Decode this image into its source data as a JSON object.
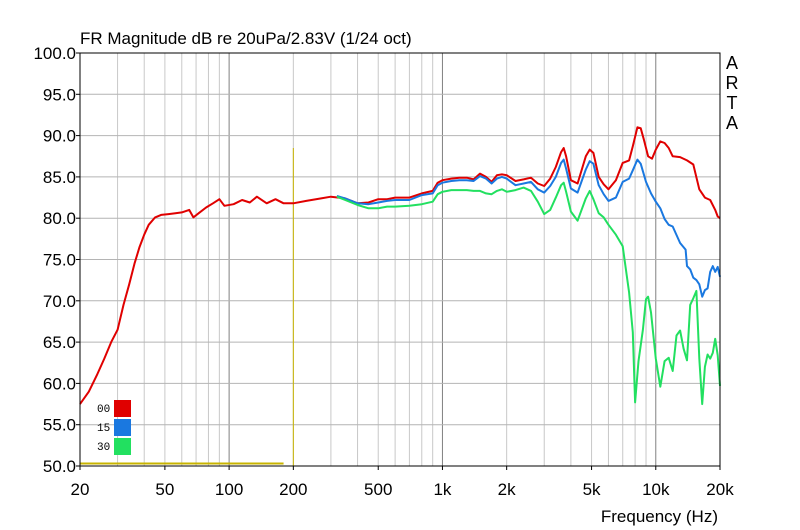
{
  "chart_data": {
    "type": "line",
    "title": "FR Magnitude dB re 20uPa/2.83V (1/24 oct)",
    "xlabel": "Frequency (Hz)",
    "ylabel": "",
    "xscale": "log",
    "xlim": [
      20,
      20000
    ],
    "ylim": [
      50,
      100
    ],
    "grid": true,
    "legend_position": "bottom-left",
    "brand_label": "ARTA",
    "x_tick_labels": [
      {
        "value": 20,
        "label": "20"
      },
      {
        "value": 50,
        "label": "50"
      },
      {
        "value": 100,
        "label": "100"
      },
      {
        "value": 200,
        "label": "200"
      },
      {
        "value": 500,
        "label": "500"
      },
      {
        "value": 1000,
        "label": "1k"
      },
      {
        "value": 2000,
        "label": "2k"
      },
      {
        "value": 5000,
        "label": "5k"
      },
      {
        "value": 10000,
        "label": "10k"
      },
      {
        "value": 20000,
        "label": "20k"
      }
    ],
    "y_tick_labels": [
      "100.0",
      "95.0",
      "90.0",
      "85.0",
      "80.0",
      "75.0",
      "70.0",
      "65.0",
      "60.0",
      "55.0",
      "50.0"
    ],
    "markers": [
      {
        "type": "vline",
        "x": 200,
        "y_top": 88.5,
        "color": "#c8b400"
      },
      {
        "type": "hline",
        "y": 50.3,
        "x_start": 20,
        "x_end": 180,
        "color": "#c8b400"
      }
    ],
    "series": [
      {
        "name": "00",
        "color": "#e00000",
        "points": [
          [
            20,
            57.5
          ],
          [
            22,
            59
          ],
          [
            24,
            61
          ],
          [
            26,
            63
          ],
          [
            28,
            65
          ],
          [
            30,
            66.5
          ],
          [
            32,
            69.5
          ],
          [
            34,
            72
          ],
          [
            36,
            74.5
          ],
          [
            38,
            76.5
          ],
          [
            40,
            78
          ],
          [
            42,
            79.2
          ],
          [
            45,
            80.1
          ],
          [
            48,
            80.4
          ],
          [
            52,
            80.5
          ],
          [
            56,
            80.6
          ],
          [
            60,
            80.7
          ],
          [
            65,
            81.0
          ],
          [
            68,
            80.1
          ],
          [
            72,
            80.6
          ],
          [
            78,
            81.3
          ],
          [
            84,
            81.8
          ],
          [
            90,
            82.3
          ],
          [
            95,
            81.5
          ],
          [
            105,
            81.7
          ],
          [
            115,
            82.2
          ],
          [
            125,
            81.9
          ],
          [
            135,
            82.6
          ],
          [
            150,
            81.8
          ],
          [
            165,
            82.3
          ],
          [
            180,
            81.8
          ],
          [
            200,
            81.8
          ],
          [
            230,
            82.1
          ],
          [
            270,
            82.4
          ],
          [
            300,
            82.6
          ],
          [
            350,
            82.4
          ],
          [
            400,
            81.8
          ],
          [
            450,
            81.9
          ],
          [
            500,
            82.3
          ],
          [
            550,
            82.3
          ],
          [
            600,
            82.5
          ],
          [
            700,
            82.5
          ],
          [
            800,
            83.0
          ],
          [
            900,
            83.3
          ],
          [
            950,
            84.3
          ],
          [
            1000,
            84.6
          ],
          [
            1100,
            84.8
          ],
          [
            1200,
            84.9
          ],
          [
            1300,
            84.9
          ],
          [
            1400,
            84.7
          ],
          [
            1500,
            85.4
          ],
          [
            1600,
            85.0
          ],
          [
            1700,
            84.4
          ],
          [
            1800,
            85.2
          ],
          [
            1900,
            85.3
          ],
          [
            2000,
            85.2
          ],
          [
            2200,
            84.5
          ],
          [
            2400,
            84.7
          ],
          [
            2600,
            84.9
          ],
          [
            2800,
            84.2
          ],
          [
            3000,
            83.9
          ],
          [
            3200,
            84.8
          ],
          [
            3400,
            86.2
          ],
          [
            3600,
            88.0
          ],
          [
            3700,
            88.5
          ],
          [
            3800,
            87.5
          ],
          [
            4000,
            84.6
          ],
          [
            4300,
            84.2
          ],
          [
            4700,
            87.5
          ],
          [
            4900,
            88.3
          ],
          [
            5100,
            87.9
          ],
          [
            5400,
            85.0
          ],
          [
            5700,
            84.1
          ],
          [
            6000,
            83.5
          ],
          [
            6500,
            84.6
          ],
          [
            7000,
            86.7
          ],
          [
            7500,
            87.0
          ],
          [
            7800,
            88.7
          ],
          [
            8200,
            91.0
          ],
          [
            8500,
            90.9
          ],
          [
            8800,
            89.5
          ],
          [
            9200,
            87.5
          ],
          [
            9600,
            87.2
          ],
          [
            10000,
            88.3
          ],
          [
            10500,
            89.3
          ],
          [
            11000,
            89.1
          ],
          [
            11500,
            88.5
          ],
          [
            12000,
            87.5
          ],
          [
            13000,
            87.4
          ],
          [
            14000,
            87.0
          ],
          [
            15000,
            86.5
          ],
          [
            16000,
            83.5
          ],
          [
            17000,
            82.5
          ],
          [
            18000,
            82.2
          ],
          [
            19000,
            81.0
          ],
          [
            19500,
            80.2
          ],
          [
            20000,
            80.0
          ]
        ]
      },
      {
        "name": "15",
        "color": "#1a78e0",
        "points": [
          [
            320,
            82.7
          ],
          [
            350,
            82.4
          ],
          [
            400,
            81.8
          ],
          [
            450,
            81.7
          ],
          [
            500,
            81.9
          ],
          [
            550,
            82.1
          ],
          [
            600,
            82.2
          ],
          [
            700,
            82.2
          ],
          [
            800,
            82.8
          ],
          [
            900,
            83.0
          ],
          [
            950,
            84.0
          ],
          [
            1000,
            84.3
          ],
          [
            1100,
            84.5
          ],
          [
            1200,
            84.6
          ],
          [
            1300,
            84.6
          ],
          [
            1400,
            84.5
          ],
          [
            1500,
            85.1
          ],
          [
            1600,
            84.8
          ],
          [
            1700,
            84.2
          ],
          [
            1800,
            84.8
          ],
          [
            1900,
            85.0
          ],
          [
            2000,
            84.8
          ],
          [
            2200,
            84.0
          ],
          [
            2400,
            84.2
          ],
          [
            2600,
            84.4
          ],
          [
            2800,
            83.5
          ],
          [
            3000,
            83.1
          ],
          [
            3200,
            83.9
          ],
          [
            3400,
            85.0
          ],
          [
            3600,
            86.7
          ],
          [
            3700,
            87.1
          ],
          [
            3800,
            86.0
          ],
          [
            4000,
            83.6
          ],
          [
            4300,
            83.1
          ],
          [
            4700,
            85.9
          ],
          [
            4900,
            86.9
          ],
          [
            5100,
            86.6
          ],
          [
            5400,
            84.0
          ],
          [
            5700,
            82.9
          ],
          [
            6000,
            82.1
          ],
          [
            6500,
            82.5
          ],
          [
            7000,
            84.4
          ],
          [
            7500,
            84.8
          ],
          [
            7800,
            85.8
          ],
          [
            8200,
            87.1
          ],
          [
            8500,
            86.6
          ],
          [
            9000,
            84.4
          ],
          [
            9500,
            83.0
          ],
          [
            10000,
            82.0
          ],
          [
            10500,
            81.2
          ],
          [
            11000,
            79.9
          ],
          [
            11500,
            79.2
          ],
          [
            12000,
            79.0
          ],
          [
            13000,
            77.0
          ],
          [
            13800,
            76.2
          ],
          [
            14000,
            74.2
          ],
          [
            14500,
            73.8
          ],
          [
            15000,
            72.8
          ],
          [
            15500,
            72.5
          ],
          [
            16000,
            72.0
          ],
          [
            16500,
            70.5
          ],
          [
            17000,
            71.3
          ],
          [
            17500,
            71.5
          ],
          [
            18000,
            73.5
          ],
          [
            18500,
            74.2
          ],
          [
            19000,
            73.5
          ],
          [
            19500,
            74.1
          ],
          [
            20000,
            72.9
          ]
        ]
      },
      {
        "name": "30",
        "color": "#22e060",
        "points": [
          [
            320,
            82.6
          ],
          [
            350,
            82.2
          ],
          [
            400,
            81.6
          ],
          [
            450,
            81.2
          ],
          [
            500,
            81.2
          ],
          [
            550,
            81.4
          ],
          [
            600,
            81.4
          ],
          [
            700,
            81.5
          ],
          [
            800,
            81.7
          ],
          [
            900,
            82.0
          ],
          [
            950,
            82.9
          ],
          [
            1000,
            83.2
          ],
          [
            1100,
            83.4
          ],
          [
            1200,
            83.4
          ],
          [
            1300,
            83.4
          ],
          [
            1400,
            83.3
          ],
          [
            1500,
            83.3
          ],
          [
            1600,
            83.0
          ],
          [
            1700,
            82.9
          ],
          [
            1800,
            83.3
          ],
          [
            1900,
            83.5
          ],
          [
            2000,
            83.2
          ],
          [
            2200,
            83.4
          ],
          [
            2400,
            83.7
          ],
          [
            2600,
            83.3
          ],
          [
            2800,
            82.0
          ],
          [
            3000,
            80.5
          ],
          [
            3200,
            81.0
          ],
          [
            3400,
            82.5
          ],
          [
            3600,
            84.0
          ],
          [
            3700,
            84.3
          ],
          [
            3800,
            83.2
          ],
          [
            4000,
            80.8
          ],
          [
            4300,
            79.7
          ],
          [
            4700,
            82.4
          ],
          [
            4900,
            83.3
          ],
          [
            5100,
            82.3
          ],
          [
            5400,
            80.6
          ],
          [
            5700,
            80.1
          ],
          [
            6000,
            79.2
          ],
          [
            6500,
            78.0
          ],
          [
            7000,
            76.6
          ],
          [
            7500,
            71.0
          ],
          [
            7800,
            66.2
          ],
          [
            8000,
            57.7
          ],
          [
            8300,
            62.7
          ],
          [
            8700,
            66.5
          ],
          [
            9000,
            70.2
          ],
          [
            9200,
            70.5
          ],
          [
            9500,
            68.6
          ],
          [
            10000,
            63.0
          ],
          [
            10500,
            59.6
          ],
          [
            11000,
            62.7
          ],
          [
            11500,
            63.1
          ],
          [
            12000,
            61.5
          ],
          [
            12500,
            65.8
          ],
          [
            13000,
            66.4
          ],
          [
            13500,
            64.2
          ],
          [
            14000,
            62.8
          ],
          [
            14500,
            69.5
          ],
          [
            15000,
            70.3
          ],
          [
            15500,
            71.2
          ],
          [
            16000,
            63.0
          ],
          [
            16500,
            57.5
          ],
          [
            17000,
            62.0
          ],
          [
            17500,
            63.5
          ],
          [
            18000,
            63.0
          ],
          [
            18500,
            63.7
          ],
          [
            19000,
            65.4
          ],
          [
            19500,
            63.4
          ],
          [
            20000,
            59.7
          ]
        ]
      }
    ]
  }
}
